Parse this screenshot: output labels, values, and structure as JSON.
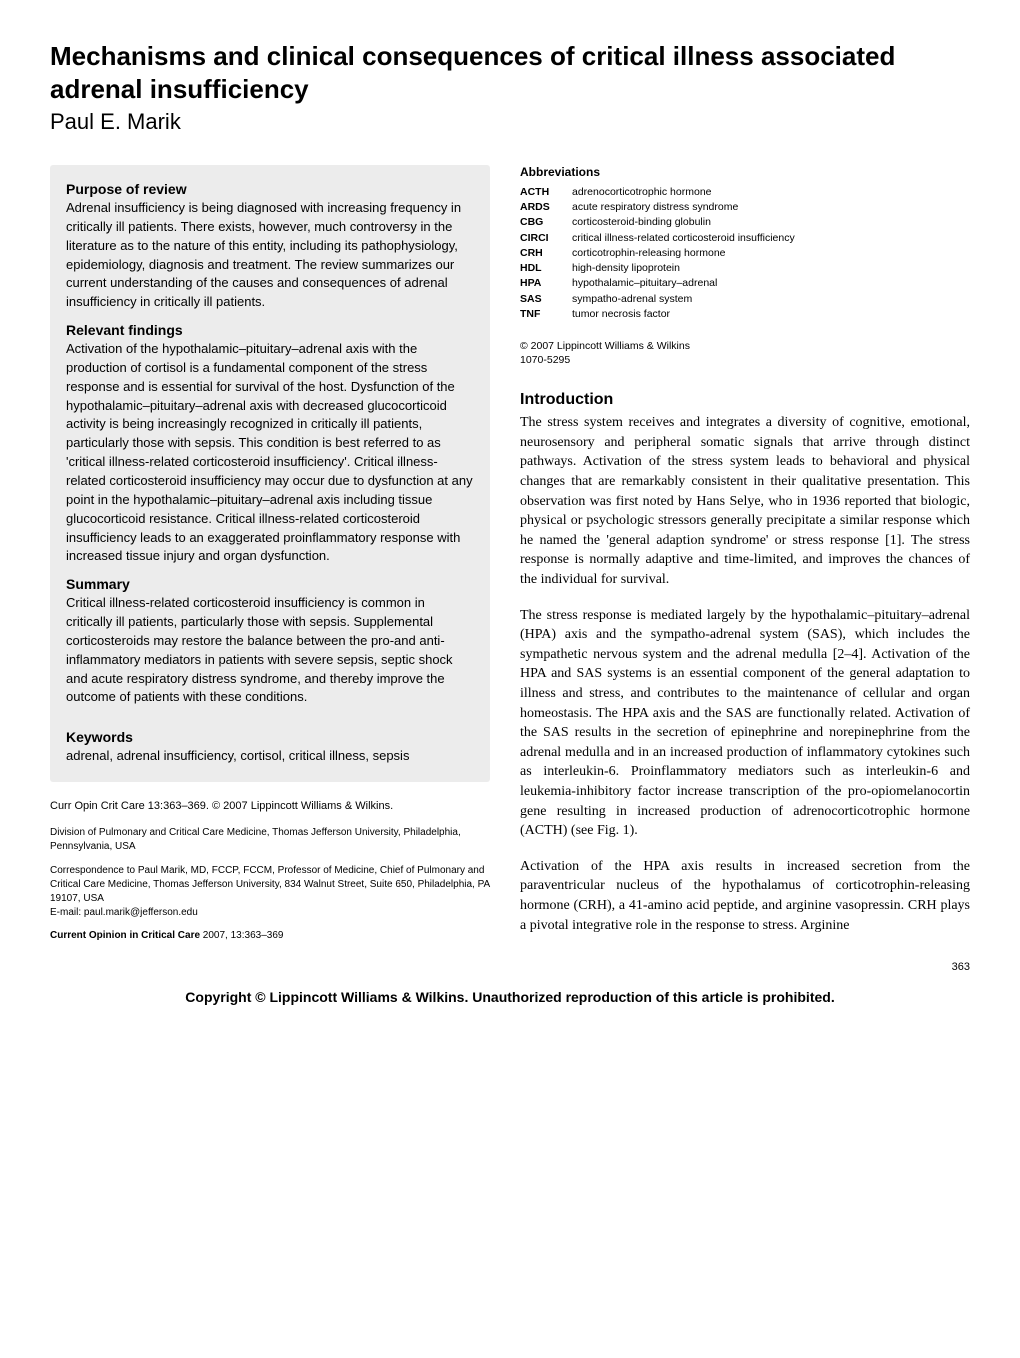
{
  "title": "Mechanisms and clinical consequences of critical illness associated adrenal insufficiency",
  "author": "Paul E. Marik",
  "abstract": {
    "purpose_heading": "Purpose of review",
    "purpose_text": "Adrenal insufficiency is being diagnosed with increasing frequency in critically ill patients. There exists, however, much controversy in the literature as to the nature of this entity, including its pathophysiology, epidemiology, diagnosis and treatment. The review summarizes our current understanding of the causes and consequences of adrenal insufficiency in critically ill patients.",
    "findings_heading": "Relevant findings",
    "findings_text": "Activation of the hypothalamic–pituitary–adrenal axis with the production of cortisol is a fundamental component of the stress response and is essential for survival of the host. Dysfunction of the hypothalamic–pituitary–adrenal axis with decreased glucocorticoid activity is being increasingly recognized in critically ill patients, particularly those with sepsis. This condition is best referred to as 'critical illness-related corticosteroid insufficiency'. Critical illness-related corticosteroid insufficiency may occur due to dysfunction at any point in the hypothalamic–pituitary–adrenal axis including tissue glucocorticoid resistance. Critical illness-related corticosteroid insufficiency leads to an exaggerated proinflammatory response with increased tissue injury and organ dysfunction.",
    "summary_heading": "Summary",
    "summary_text": "Critical illness-related corticosteroid insufficiency is common in critically ill patients, particularly those with sepsis. Supplemental corticosteroids may restore the balance between the pro-and anti-inflammatory mediators in patients with severe sepsis, septic shock and acute respiratory distress syndrome, and thereby improve the outcome of patients with these conditions.",
    "keywords_heading": "Keywords",
    "keywords_text": "adrenal, adrenal insufficiency, cortisol, critical illness, sepsis"
  },
  "citation": "Curr Opin Crit Care 13:363–369. © 2007 Lippincott Williams & Wilkins.",
  "affiliation": "Division of Pulmonary and Critical Care Medicine, Thomas Jefferson University, Philadelphia, Pennsylvania, USA",
  "correspondence": "Correspondence to Paul Marik, MD, FCCP, FCCM, Professor of Medicine, Chief of Pulmonary and Critical Care Medicine, Thomas Jefferson University, 834 Walnut Street, Suite 650, Philadelphia, PA 19107, USA",
  "email": "E-mail: paul.marik@jefferson.edu",
  "journal_bold": "Current Opinion in Critical Care",
  "journal_rest": " 2007, 13:363–369",
  "abbrev_heading": "Abbreviations",
  "abbreviations": [
    {
      "k": "ACTH",
      "v": "adrenocorticotrophic hormone"
    },
    {
      "k": "ARDS",
      "v": "acute respiratory distress syndrome"
    },
    {
      "k": "CBG",
      "v": "corticosteroid-binding globulin"
    },
    {
      "k": "CIRCI",
      "v": "critical illness-related corticosteroid insufficiency"
    },
    {
      "k": "CRH",
      "v": "corticotrophin-releasing hormone"
    },
    {
      "k": "HDL",
      "v": "high-density lipoprotein"
    },
    {
      "k": "HPA",
      "v": "hypothalamic–pituitary–adrenal"
    },
    {
      "k": "SAS",
      "v": "sympatho-adrenal system"
    },
    {
      "k": "TNF",
      "v": "tumor necrosis factor"
    }
  ],
  "copyright_line1": "© 2007 Lippincott Williams & Wilkins",
  "copyright_line2": "1070-5295",
  "intro_heading": "Introduction",
  "intro_p1": "The stress system receives and integrates a diversity of cognitive, emotional, neurosensory and peripheral somatic signals that arrive through distinct pathways. Activation of the stress system leads to behavioral and physical changes that are remarkably consistent in their qualitative presentation. This observation was first noted by Hans Selye, who in 1936 reported that biologic, physical or psychologic stressors generally precipitate a similar response which he named the 'general adaption syndrome' or stress response [1]. The stress response is normally adaptive and time-limited, and improves the chances of the individual for survival.",
  "intro_p2": "The stress response is mediated largely by the hypothalamic–pituitary–adrenal (HPA) axis and the sympatho-adrenal system (SAS), which includes the sympathetic nervous system and the adrenal medulla [2–4]. Activation of the HPA and SAS systems is an essential component of the general adaptation to illness and stress, and contributes to the maintenance of cellular and organ homeostasis. The HPA axis and the SAS are functionally related. Activation of the SAS results in the secretion of epinephrine and norepinephrine from the adrenal medulla and in an increased production of inflammatory cytokines such as interleukin-6. Proinflammatory mediators such as interleukin-6 and leukemia-inhibitory factor increase transcription of the pro-opiomelanocortin gene resulting in increased production of adrenocorticotrophic hormone (ACTH) (see Fig. 1).",
  "intro_p3": "Activation of the HPA axis results in increased secretion from the paraventricular nucleus of the hypothalamus of corticotrophin-releasing hormone (CRH), a 41-amino acid peptide, and arginine vasopressin. CRH plays a pivotal integrative role in the response to stress. Arginine",
  "page_number": "363",
  "footer": "Copyright © Lippincott Williams & Wilkins. Unauthorized reproduction of this article is prohibited."
}
